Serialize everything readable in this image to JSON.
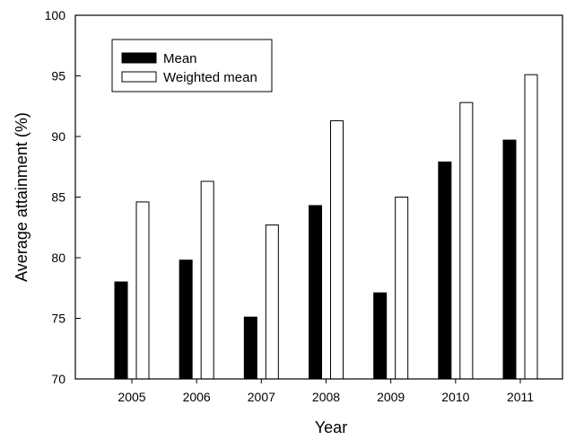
{
  "chart_data": {
    "type": "bar",
    "title": "",
    "xlabel": "Year",
    "ylabel": "Average attainment (%)",
    "categories": [
      "2005",
      "2006",
      "2007",
      "2008",
      "2009",
      "2010",
      "2011"
    ],
    "series": [
      {
        "name": "Mean",
        "values": [
          78.0,
          79.8,
          75.1,
          84.3,
          77.1,
          87.9,
          89.7
        ],
        "color": "#000000"
      },
      {
        "name": "Weighted mean",
        "values": [
          84.6,
          86.3,
          82.7,
          91.3,
          85.0,
          92.8,
          95.1
        ],
        "color": "#ffffff"
      }
    ],
    "ylim": [
      70,
      100
    ],
    "yticks": [
      70,
      75,
      80,
      85,
      90,
      95,
      100
    ],
    "grid": false,
    "legend_position": "top-left"
  }
}
